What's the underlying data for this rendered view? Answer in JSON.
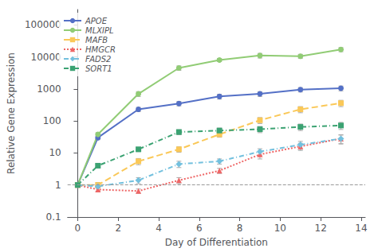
{
  "chart_data": {
    "type": "line",
    "xlabel": "Day of Differentiation",
    "ylabel": "Relative Gene Expression",
    "x": [
      0,
      1,
      3,
      5,
      7,
      9,
      11,
      13
    ],
    "series": [
      {
        "name": "APOE",
        "values": [
          1,
          30,
          230,
          350,
          580,
          700,
          950,
          1050
        ],
        "errors": [
          0,
          4,
          35,
          55,
          100,
          120,
          150,
          180
        ],
        "marker": "circle",
        "line_style": "solid"
      },
      {
        "name": "MLXIPL",
        "values": [
          1,
          38,
          700,
          4500,
          8000,
          11000,
          10500,
          17000
        ],
        "errors": [
          0,
          5,
          120,
          700,
          900,
          1800,
          1500,
          2500
        ],
        "marker": "circle",
        "line_style": "solid"
      },
      {
        "name": "MAFB",
        "values": [
          1,
          1,
          5.5,
          13,
          38,
          105,
          230,
          360
        ],
        "errors": [
          0,
          0.2,
          1.2,
          2.5,
          7,
          22,
          50,
          80
        ],
        "marker": "square",
        "line_style": "dashed"
      },
      {
        "name": "HMGCR",
        "values": [
          1,
          0.72,
          0.65,
          1.4,
          2.8,
          9,
          16,
          28
        ],
        "errors": [
          0,
          0.08,
          0.1,
          0.3,
          0.5,
          2.5,
          4,
          9
        ],
        "marker": "triangle",
        "line_style": "dotted"
      },
      {
        "name": "FADS2",
        "values": [
          1,
          0.9,
          1.4,
          4.5,
          5.5,
          11,
          18,
          28
        ],
        "errors": [
          0,
          0.08,
          0.3,
          1.0,
          1.0,
          2.5,
          5,
          8
        ],
        "marker": "diamond",
        "line_style": "dashdot"
      },
      {
        "name": "SORT1",
        "values": [
          1,
          4,
          13,
          45,
          50,
          55,
          65,
          72
        ],
        "errors": [
          0,
          0.5,
          2,
          8,
          10,
          12,
          15,
          18
        ],
        "marker": "square",
        "line_style": "dashdot"
      }
    ],
    "xlim": [
      -0.5,
      14.2
    ],
    "xticks": [
      0,
      2,
      4,
      6,
      8,
      10,
      12,
      14
    ],
    "ylim": [
      0.1,
      300000
    ],
    "yticks": [
      0.1,
      1,
      10,
      100,
      1000,
      10000,
      100000
    ],
    "log": "y",
    "grid": false,
    "legend": "upper left",
    "reference_line": {
      "y": 1,
      "line_style": "dashed"
    }
  }
}
